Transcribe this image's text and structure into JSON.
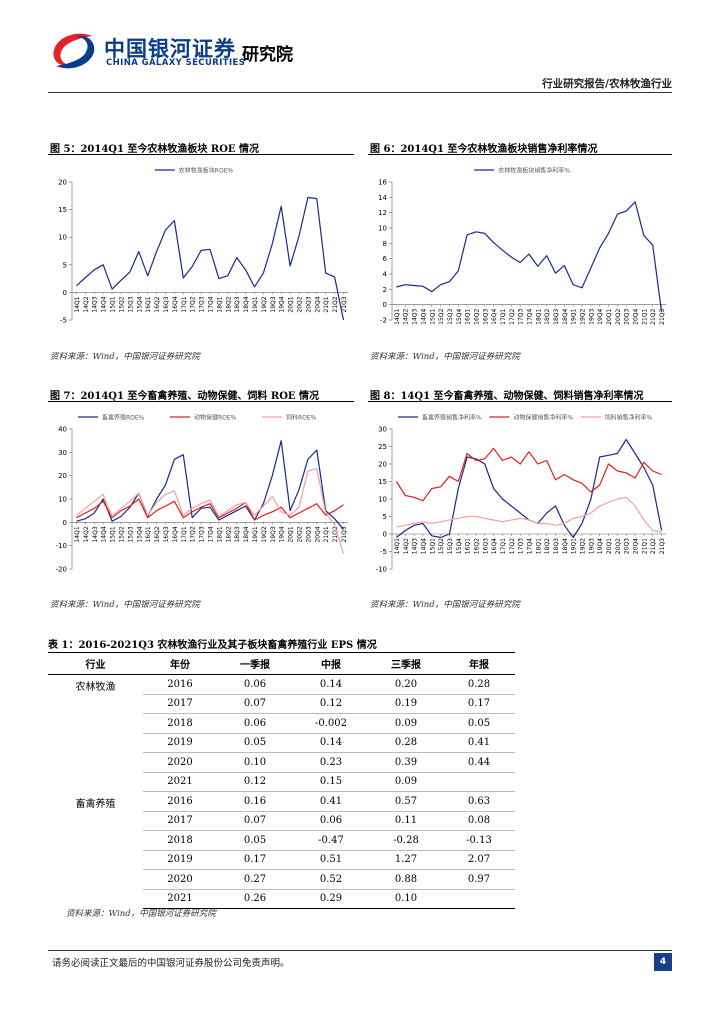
{
  "header": {
    "brand_cn": "中国银河证券",
    "brand_en": "CHINA GALAXY SECURITIES",
    "brand_institute": "研究院",
    "report_type": "行业研究报告/农林牧渔行业"
  },
  "colors": {
    "navy": "#1a2a8c",
    "red": "#e02020",
    "pink": "#f4a0a0",
    "brand_blue": "#0a3c8c",
    "brand_red": "#e0242a"
  },
  "figures": [
    {
      "title": "图 5：2014Q1 至今农林牧渔板块 ROE 情况",
      "source": "资料来源：Wind，中国银河证券研究院",
      "chart_data": {
        "type": "line",
        "x": [
          "14Q1",
          "14Q2",
          "14Q3",
          "14Q4",
          "15Q1",
          "15Q2",
          "15Q3",
          "15Q4",
          "16Q1",
          "16Q2",
          "16Q3",
          "16Q4",
          "17Q1",
          "17Q2",
          "17Q3",
          "17Q4",
          "18Q1",
          "18Q2",
          "18Q3",
          "18Q4",
          "19Q1",
          "19Q2",
          "19Q3",
          "19Q4",
          "20Q1",
          "20Q2",
          "20Q3",
          "20Q4",
          "21Q1",
          "21Q2",
          "21Q3"
        ],
        "series": [
          {
            "name": "农林牧渔板块ROE%",
            "values": [
              1.2,
              2.7,
              4.1,
              5.0,
              0.6,
              2.2,
              3.7,
              7.4,
              3.0,
              7.4,
              11.3,
              13.0,
              2.6,
              4.7,
              7.6,
              7.8,
              2.5,
              3.0,
              6.3,
              4.1,
              1.0,
              3.5,
              8.8,
              15.6,
              4.8,
              10.2,
              17.2,
              17.0,
              3.5,
              2.8,
              -5.0
            ]
          }
        ],
        "ylim": [
          -5,
          20
        ],
        "yticks": [
          -5,
          0,
          5,
          10,
          15,
          20
        ]
      }
    },
    {
      "title": "图 6：2014Q1 至今农林牧渔板块销售净利率情况",
      "source": "资料来源：Wind，中国银河证券研究院",
      "chart_data": {
        "type": "line",
        "x": [
          "14Q1",
          "14Q2",
          "14Q3",
          "14Q4",
          "15Q1",
          "15Q2",
          "15Q3",
          "15Q4",
          "16Q1",
          "16Q2",
          "16Q3",
          "16Q4",
          "17Q1",
          "17Q2",
          "17Q3",
          "17Q4",
          "18Q1",
          "18Q2",
          "18Q3",
          "18Q4",
          "19Q1",
          "19Q2",
          "19Q3",
          "19Q4",
          "20Q1",
          "20Q2",
          "20Q3",
          "20Q4",
          "21Q1",
          "21Q2",
          "21Q3"
        ],
        "series": [
          {
            "name": "农林牧渔板块销售净利率%",
            "values": [
              2.3,
              2.6,
              2.5,
              2.4,
              1.7,
              2.6,
              3.0,
              4.4,
              9.1,
              9.5,
              9.3,
              8.1,
              7.1,
              6.2,
              5.5,
              6.6,
              5.0,
              6.4,
              4.1,
              5.1,
              2.6,
              2.2,
              4.8,
              7.4,
              9.3,
              11.8,
              12.2,
              13.4,
              9.0,
              7.8,
              -1.0
            ]
          }
        ],
        "ylim": [
          -2,
          16
        ],
        "yticks": [
          -2,
          0,
          2,
          4,
          6,
          8,
          10,
          12,
          14,
          16
        ]
      }
    },
    {
      "title": "图 7：2014Q1 至今畜禽养殖、动物保健、饲料 ROE 情况",
      "source": "资料来源：Wind，中国银河证券研究院",
      "chart_data": {
        "type": "line",
        "x": [
          "14Q1",
          "14Q2",
          "14Q3",
          "14Q4",
          "15Q1",
          "15Q2",
          "15Q3",
          "15Q4",
          "16Q1",
          "16Q2",
          "16Q3",
          "16Q4",
          "17Q1",
          "17Q2",
          "17Q3",
          "17Q4",
          "18Q1",
          "18Q2",
          "18Q3",
          "18Q4",
          "19Q1",
          "19Q2",
          "19Q3",
          "19Q4",
          "20Q1",
          "20Q2",
          "20Q3",
          "20Q4",
          "21Q1",
          "21Q2",
          "21Q3"
        ],
        "series": [
          {
            "name": "畜禽养殖ROE%",
            "values": [
              0.5,
              1.5,
              4.0,
              10.0,
              0.5,
              2.5,
              6.5,
              12.5,
              2.5,
              10.0,
              16.0,
              27.0,
              29.0,
              2.0,
              6.0,
              6.5,
              1.0,
              3.0,
              5.0,
              7.0,
              1.0,
              8.0,
              20.0,
              35.0,
              5.0,
              14.0,
              27.0,
              31.0,
              5.0,
              1.5,
              -3.0
            ]
          },
          {
            "name": "动物保健ROE%",
            "values": [
              2.0,
              4.0,
              6.0,
              9.0,
              2.0,
              5.0,
              7.0,
              10.0,
              2.0,
              5.0,
              7.0,
              9.0,
              2.0,
              4.5,
              6.5,
              8.0,
              2.0,
              4.0,
              6.0,
              8.5,
              1.0,
              3.0,
              4.5,
              6.5,
              2.0,
              4.0,
              6.0,
              8.0,
              3.0,
              5.0,
              7.5
            ]
          },
          {
            "name": "饲料ROE%",
            "values": [
              3.0,
              6.0,
              9.0,
              12.0,
              2.5,
              6.0,
              9.0,
              12.5,
              3.0,
              8.5,
              12.0,
              13.5,
              3.0,
              6.0,
              8.0,
              9.5,
              2.5,
              5.0,
              7.5,
              8.5,
              3.0,
              7.0,
              11.0,
              4.5,
              3.0,
              6.5,
              22.0,
              23.0,
              4.0,
              -1.0,
              -13.5
            ]
          }
        ],
        "ylim": [
          -20,
          40
        ],
        "yticks": [
          -20,
          -10,
          0,
          10,
          20,
          30,
          40
        ]
      }
    },
    {
      "title": "图 8：14Q1 至今畜禽养殖、动物保健、饲料销售净利率情况",
      "source": "资料来源：Wind，中国银河证券研究院",
      "chart_data": {
        "type": "line",
        "x": [
          "14Q1",
          "14Q2",
          "14Q3",
          "14Q4",
          "15Q1",
          "15Q2",
          "15Q3",
          "15Q4",
          "16Q1",
          "16Q2",
          "16Q3",
          "16Q4",
          "17Q1",
          "17Q2",
          "17Q3",
          "17Q4",
          "18Q1",
          "18Q2",
          "18Q3",
          "18Q4",
          "19Q1",
          "19Q2",
          "19Q3",
          "19Q4",
          "20Q1",
          "20Q2",
          "20Q3",
          "20Q4",
          "21Q1",
          "21Q2",
          "21Q3"
        ],
        "series": [
          {
            "name": "畜禽养殖销售净利率%",
            "values": [
              -1.0,
              1.0,
              2.5,
              3.0,
              -0.5,
              -1.0,
              0.0,
              13.0,
              22.0,
              21.5,
              20.0,
              13.0,
              10.0,
              8.0,
              6.0,
              4.0,
              3.0,
              6.0,
              8.0,
              2.5,
              -1.0,
              3.0,
              10.0,
              22.0,
              22.5,
              23.0,
              27.0,
              23.0,
              19.0,
              14.0,
              1.0
            ]
          },
          {
            "name": "动物保健销售净利率%",
            "values": [
              15.0,
              11.0,
              10.5,
              9.5,
              13.0,
              13.5,
              16.5,
              15.0,
              23.0,
              21.0,
              21.5,
              24.5,
              21.0,
              22.0,
              20.0,
              23.5,
              20.0,
              21.0,
              15.5,
              17.0,
              15.5,
              14.5,
              12.0,
              14.0,
              20.0,
              18.0,
              17.5,
              16.0,
              20.5,
              18.0,
              17.0
            ]
          },
          {
            "name": "饲料销售净利率%",
            "values": [
              2.0,
              2.5,
              3.0,
              3.5,
              3.0,
              3.5,
              4.0,
              4.5,
              5.0,
              5.0,
              4.5,
              4.0,
              3.5,
              4.0,
              4.5,
              4.0,
              3.0,
              3.0,
              2.5,
              3.0,
              4.5,
              5.0,
              6.0,
              8.0,
              9.0,
              10.0,
              10.5,
              8.0,
              4.0,
              1.0,
              0.5
            ]
          }
        ],
        "ylim": [
          -10,
          30
        ],
        "yticks": [
          -10,
          -5,
          0,
          5,
          10,
          15,
          20,
          25,
          30
        ]
      }
    }
  ],
  "table": {
    "title": "表 1：2016-2021Q3 农林牧渔行业及其子板块畜禽养殖行业 EPS 情况",
    "headers": [
      "行业",
      "年份",
      "一季报",
      "中报",
      "三季报",
      "年报"
    ],
    "groups": [
      {
        "industry": "农林牧渔",
        "rows": [
          [
            "2016",
            "0.06",
            "0.14",
            "0.20",
            "0.28"
          ],
          [
            "2017",
            "0.07",
            "0.12",
            "0.19",
            "0.17"
          ],
          [
            "2018",
            "0.06",
            "-0.002",
            "0.09",
            "0.05"
          ],
          [
            "2019",
            "0.05",
            "0.14",
            "0.28",
            "0.41"
          ],
          [
            "2020",
            "0.10",
            "0.23",
            "0.39",
            "0.44"
          ],
          [
            "2021",
            "0.12",
            "0.15",
            "0.09",
            ""
          ]
        ]
      },
      {
        "industry": "畜禽养殖",
        "rows": [
          [
            "2016",
            "0.16",
            "0.41",
            "0.57",
            "0.63"
          ],
          [
            "2017",
            "0.07",
            "0.06",
            "0.11",
            "0.08"
          ],
          [
            "2018",
            "0.05",
            "-0.47",
            "-0.28",
            "-0.13"
          ],
          [
            "2019",
            "0.17",
            "0.51",
            "1.27",
            "2.07"
          ],
          [
            "2020",
            "0.27",
            "0.52",
            "0.88",
            "0.97"
          ],
          [
            "2021",
            "0.26",
            "0.29",
            "0.10",
            ""
          ]
        ]
      }
    ],
    "source": "资料来源：Wind，中国银河证券研究院"
  },
  "footer": {
    "disclaimer": "请务必阅读正文最后的中国银河证券股份公司免责声明。",
    "page_number": "4"
  }
}
